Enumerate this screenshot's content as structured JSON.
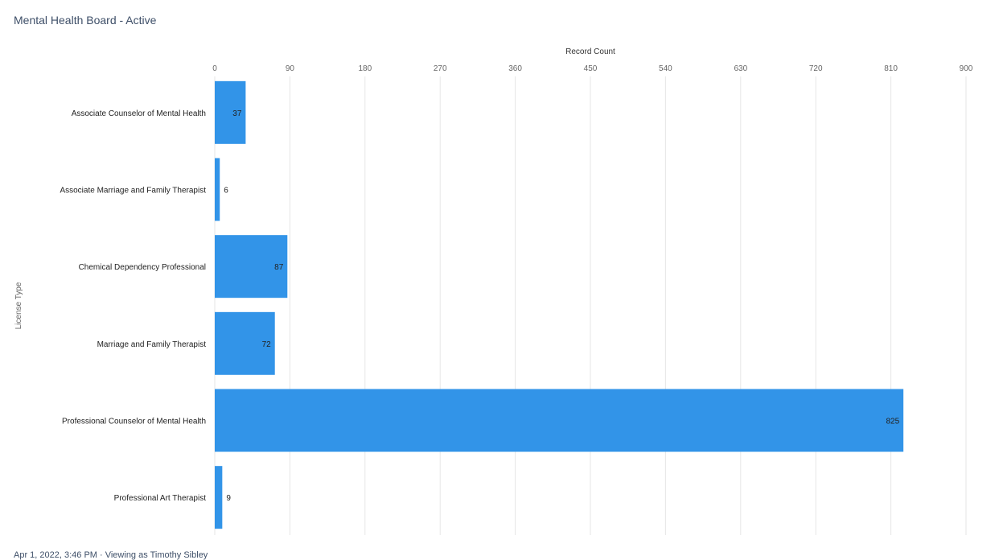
{
  "title": "Mental Health Board - Active",
  "footer": "Apr 1, 2022, 3:46 PM · Viewing as Timothy Sibley",
  "chart_data": {
    "type": "bar",
    "orientation": "horizontal",
    "xlabel": "Record Count",
    "ylabel": "License Type",
    "xlim": [
      0,
      900
    ],
    "xticks": [
      0,
      90,
      180,
      270,
      360,
      450,
      540,
      630,
      720,
      810,
      900
    ],
    "grid": true,
    "categories": [
      "Associate Counselor of Mental Health",
      "Associate Marriage and Family Therapist",
      "Chemical Dependency Professional",
      "Marriage and Family Therapist",
      "Professional Counselor of Mental Health",
      "Professional Art Therapist"
    ],
    "values": [
      37,
      6,
      87,
      72,
      825,
      9
    ],
    "color": "#3294e8"
  }
}
